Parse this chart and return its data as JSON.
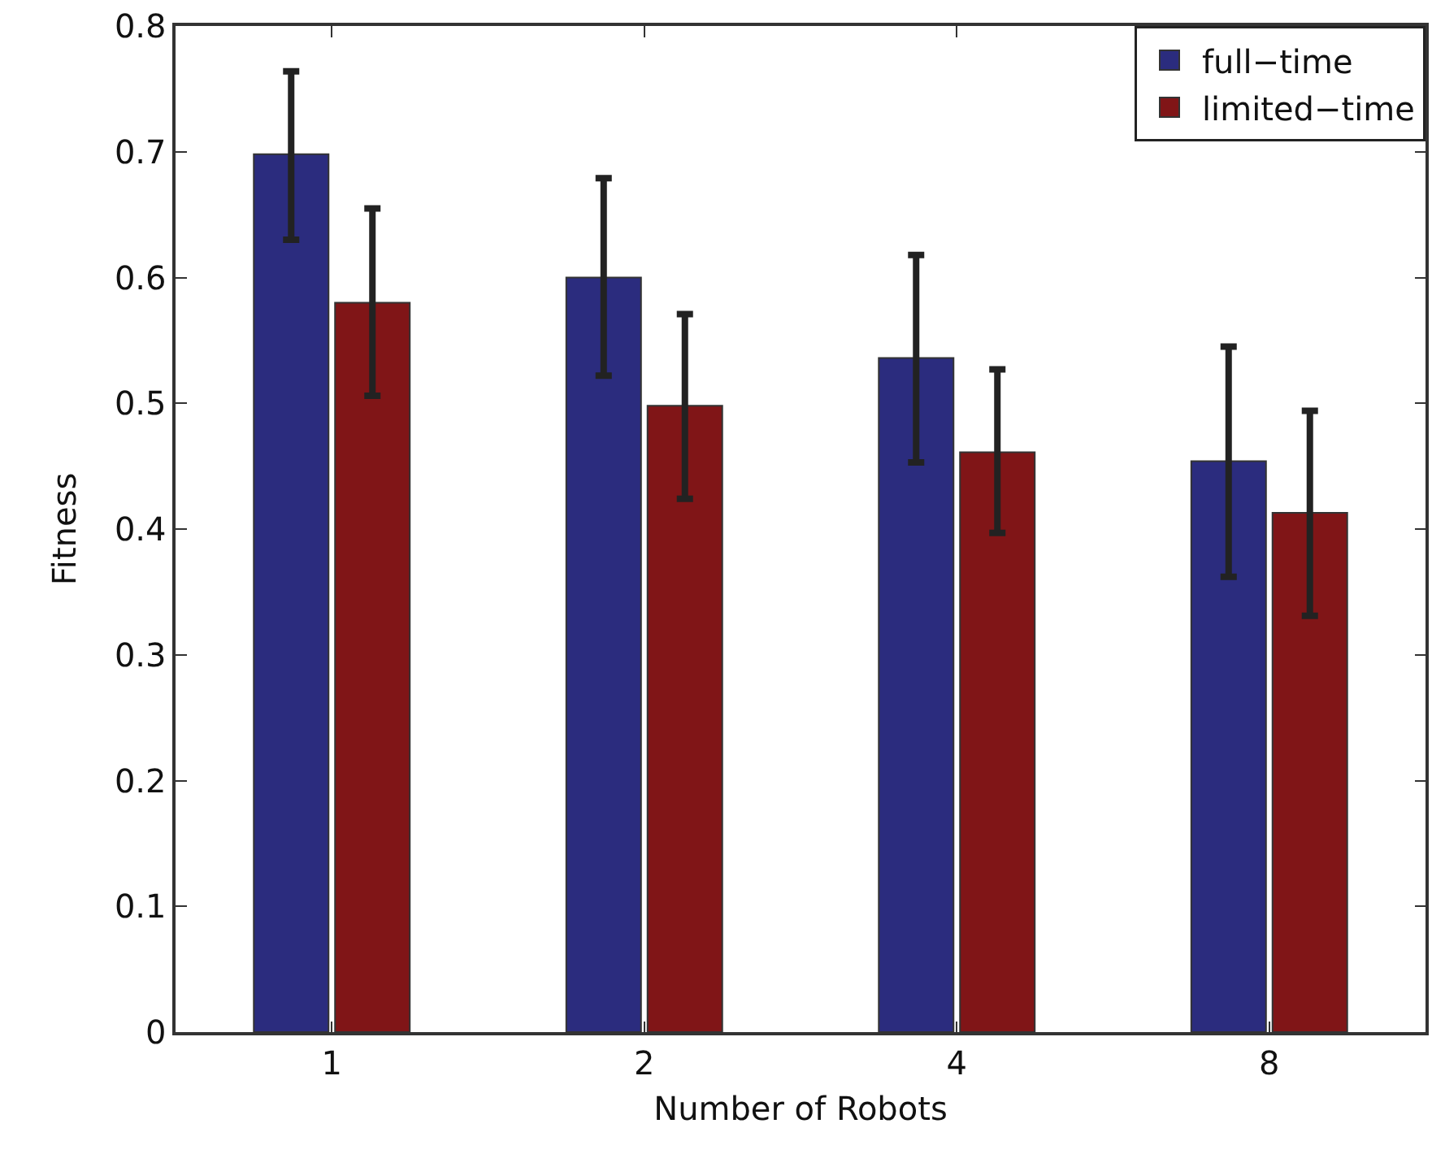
{
  "chart_data": {
    "type": "bar",
    "xlabel": "Number of Robots",
    "ylabel": "Fitness",
    "categories": [
      "1",
      "2",
      "4",
      "8"
    ],
    "series": [
      {
        "name": "full−time",
        "color": "#2b2c7e",
        "values": [
          0.698,
          0.6,
          0.536,
          0.454
        ],
        "errors": [
          [
            0.63,
            0.764
          ],
          [
            0.522,
            0.679
          ],
          [
            0.453,
            0.618
          ],
          [
            0.362,
            0.545
          ]
        ]
      },
      {
        "name": "limited−time",
        "color": "#801517",
        "values": [
          0.58,
          0.498,
          0.461,
          0.413
        ],
        "errors": [
          [
            0.506,
            0.655
          ],
          [
            0.424,
            0.571
          ],
          [
            0.397,
            0.527
          ],
          [
            0.331,
            0.494
          ]
        ]
      }
    ],
    "ylim": [
      0,
      0.8
    ],
    "yticks": [
      0,
      0.1,
      0.2,
      0.3,
      0.4,
      0.5,
      0.6,
      0.7,
      0.8
    ],
    "grid": false,
    "legend": "top right"
  }
}
